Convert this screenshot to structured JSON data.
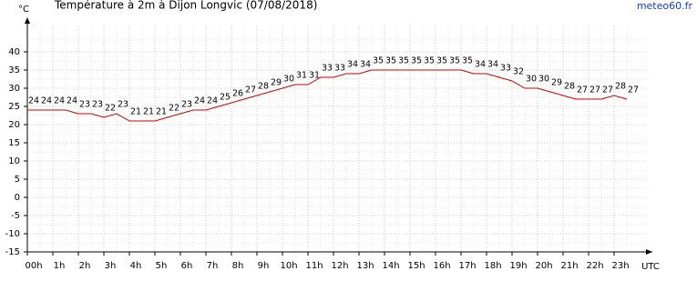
{
  "chart_data": {
    "type": "line",
    "title": "Température à 2m à Dijon Longvic (07/08/2018)",
    "y_label": "°C",
    "x_label": "UTC",
    "source": "meteo60.fr",
    "x": [
      0,
      0.5,
      1,
      1.5,
      2,
      2.5,
      3,
      3.5,
      4,
      4.5,
      5,
      5.5,
      6,
      6.5,
      7,
      7.5,
      8,
      8.5,
      9,
      9.5,
      10,
      10.5,
      11,
      11.5,
      12,
      12.5,
      13,
      13.5,
      14,
      14.5,
      15,
      15.5,
      16,
      16.5,
      17,
      17.5,
      18,
      18.5,
      19,
      19.5,
      20,
      20.5,
      21,
      21.5,
      22,
      22.5,
      23,
      23.5
    ],
    "series": [
      {
        "name": "Température",
        "color": "#cc0000",
        "values": [
          24,
          24,
          24,
          24,
          23,
          23,
          22,
          23,
          21,
          21,
          21,
          22,
          23,
          24,
          24,
          25,
          26,
          27,
          28,
          29,
          30,
          31,
          31,
          33,
          33,
          34,
          34,
          35,
          35,
          35,
          35,
          35,
          35,
          35,
          35,
          34,
          34,
          33,
          32,
          30,
          30,
          29,
          28,
          27,
          27,
          27,
          28,
          27
        ]
      }
    ],
    "xlim": [
      0,
      24.5
    ],
    "xticks": [
      {
        "value": 0,
        "label": "00h"
      },
      {
        "value": 1,
        "label": "1h"
      },
      {
        "value": 2,
        "label": "2h"
      },
      {
        "value": 3,
        "label": "3h"
      },
      {
        "value": 4,
        "label": "4h"
      },
      {
        "value": 5,
        "label": "5h"
      },
      {
        "value": 6,
        "label": "6h"
      },
      {
        "value": 7,
        "label": "7h"
      },
      {
        "value": 8,
        "label": "8h"
      },
      {
        "value": 9,
        "label": "9h"
      },
      {
        "value": 10,
        "label": "10h"
      },
      {
        "value": 11,
        "label": "11h"
      },
      {
        "value": 12,
        "label": "12h"
      },
      {
        "value": 13,
        "label": "13h"
      },
      {
        "value": 14,
        "label": "14h"
      },
      {
        "value": 15,
        "label": "15h"
      },
      {
        "value": 16,
        "label": "16h"
      },
      {
        "value": 17,
        "label": "17h"
      },
      {
        "value": 18,
        "label": "18h"
      },
      {
        "value": 19,
        "label": "19h"
      },
      {
        "value": 20,
        "label": "20h"
      },
      {
        "value": 21,
        "label": "21h"
      },
      {
        "value": 22,
        "label": "22h"
      },
      {
        "value": 23,
        "label": "23h"
      }
    ],
    "ylim": [
      -15,
      47
    ],
    "yticks": [
      -15,
      -10,
      -5,
      0,
      5,
      10,
      15,
      20,
      25,
      30,
      35,
      40
    ],
    "grid": true
  }
}
